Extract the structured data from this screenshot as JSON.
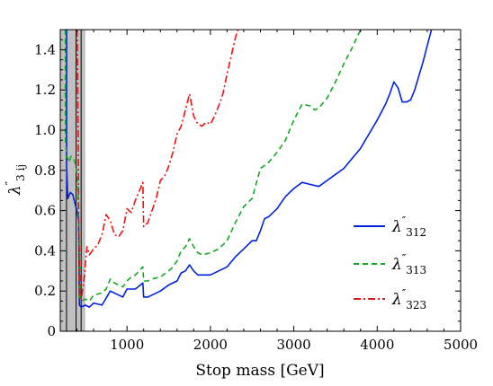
{
  "chart_data": {
    "type": "line",
    "xlabel": "Stop mass [GeV]",
    "ylabel": {
      "main": "λ",
      "prime": "″",
      "sub": "3 ij"
    },
    "xlim": [
      200,
      5000
    ],
    "ylim": [
      0,
      1.5
    ],
    "x_ticks": [
      1000,
      2000,
      3000,
      4000,
      5000
    ],
    "y_ticks": [
      0,
      0.2,
      0.4,
      0.6,
      0.8,
      1.0,
      1.2,
      1.4
    ],
    "x_tick_labels": [
      "1000",
      "2000",
      "3000",
      "4000",
      "5000"
    ],
    "y_tick_labels": [
      "0",
      "0.2",
      "0.4",
      "0.6",
      "0.8",
      "1.0",
      "1.2",
      "1.4"
    ],
    "legend_position": "right",
    "excluded_band": {
      "x": [
        200,
        500
      ],
      "color": "#c0c0c0"
    },
    "vertical_lines": [
      {
        "x": 275,
        "color": "#000000",
        "style": "solid"
      },
      {
        "x": 390,
        "color": "#000000",
        "style": "solid"
      },
      {
        "x": 450,
        "color": "#000000",
        "style": "solid"
      }
    ],
    "series": [
      {
        "name_main": "λ",
        "name_prime": "″",
        "name_sub": "312",
        "color": "#0022dd",
        "dash": "solid",
        "points": [
          [
            275,
            1.5
          ],
          [
            275,
            0.82
          ],
          [
            290,
            0.66
          ],
          [
            320,
            0.69
          ],
          [
            350,
            0.68
          ],
          [
            380,
            0.63
          ],
          [
            400,
            0.6
          ],
          [
            420,
            0.55
          ],
          [
            430,
            0.13
          ],
          [
            450,
            0.12
          ],
          [
            500,
            0.13
          ],
          [
            550,
            0.12
          ],
          [
            600,
            0.14
          ],
          [
            700,
            0.13
          ],
          [
            800,
            0.2
          ],
          [
            900,
            0.18
          ],
          [
            950,
            0.17
          ],
          [
            1000,
            0.21
          ],
          [
            1100,
            0.21
          ],
          [
            1190,
            0.24
          ],
          [
            1200,
            0.17
          ],
          [
            1250,
            0.17
          ],
          [
            1300,
            0.18
          ],
          [
            1400,
            0.2
          ],
          [
            1500,
            0.23
          ],
          [
            1600,
            0.25
          ],
          [
            1650,
            0.29
          ],
          [
            1700,
            0.3
          ],
          [
            1750,
            0.33
          ],
          [
            1800,
            0.3
          ],
          [
            1850,
            0.28
          ],
          [
            1900,
            0.28
          ],
          [
            2000,
            0.28
          ],
          [
            2100,
            0.3
          ],
          [
            2200,
            0.32
          ],
          [
            2300,
            0.37
          ],
          [
            2400,
            0.41
          ],
          [
            2500,
            0.45
          ],
          [
            2550,
            0.45
          ],
          [
            2600,
            0.5
          ],
          [
            2650,
            0.56
          ],
          [
            2700,
            0.57
          ],
          [
            2800,
            0.61
          ],
          [
            2900,
            0.67
          ],
          [
            3000,
            0.71
          ],
          [
            3100,
            0.74
          ],
          [
            3200,
            0.73
          ],
          [
            3300,
            0.72
          ],
          [
            3400,
            0.75
          ],
          [
            3500,
            0.78
          ],
          [
            3600,
            0.81
          ],
          [
            3700,
            0.86
          ],
          [
            3800,
            0.91
          ],
          [
            3900,
            0.98
          ],
          [
            4000,
            1.05
          ],
          [
            4100,
            1.13
          ],
          [
            4150,
            1.18
          ],
          [
            4200,
            1.24
          ],
          [
            4250,
            1.21
          ],
          [
            4300,
            1.14
          ],
          [
            4350,
            1.14
          ],
          [
            4400,
            1.15
          ],
          [
            4450,
            1.2
          ],
          [
            4500,
            1.27
          ],
          [
            4550,
            1.34
          ],
          [
            4600,
            1.42
          ],
          [
            4650,
            1.5
          ]
        ]
      },
      {
        "name_main": "λ",
        "name_prime": "″",
        "name_sub": "313",
        "color": "#11aa22",
        "dash": "6,4",
        "points": [
          [
            260,
            1.5
          ],
          [
            262,
            0.95
          ],
          [
            275,
            0.88
          ],
          [
            300,
            0.84
          ],
          [
            330,
            0.87
          ],
          [
            360,
            0.86
          ],
          [
            390,
            0.82
          ],
          [
            410,
            0.72
          ],
          [
            425,
            0.45
          ],
          [
            435,
            0.17
          ],
          [
            450,
            0.15
          ],
          [
            500,
            0.16
          ],
          [
            550,
            0.15
          ],
          [
            600,
            0.18
          ],
          [
            700,
            0.19
          ],
          [
            750,
            0.21
          ],
          [
            800,
            0.26
          ],
          [
            850,
            0.24
          ],
          [
            900,
            0.23
          ],
          [
            950,
            0.22
          ],
          [
            1000,
            0.25
          ],
          [
            1050,
            0.27
          ],
          [
            1100,
            0.28
          ],
          [
            1190,
            0.32
          ],
          [
            1200,
            0.25
          ],
          [
            1250,
            0.25
          ],
          [
            1300,
            0.26
          ],
          [
            1400,
            0.27
          ],
          [
            1500,
            0.3
          ],
          [
            1550,
            0.32
          ],
          [
            1600,
            0.35
          ],
          [
            1650,
            0.4
          ],
          [
            1700,
            0.42
          ],
          [
            1750,
            0.46
          ],
          [
            1800,
            0.42
          ],
          [
            1850,
            0.39
          ],
          [
            1900,
            0.38
          ],
          [
            2000,
            0.39
          ],
          [
            2100,
            0.41
          ],
          [
            2200,
            0.45
          ],
          [
            2300,
            0.54
          ],
          [
            2400,
            0.62
          ],
          [
            2500,
            0.66
          ],
          [
            2600,
            0.81
          ],
          [
            2700,
            0.84
          ],
          [
            2800,
            0.89
          ],
          [
            2900,
            0.95
          ],
          [
            3000,
            1.05
          ],
          [
            3100,
            1.13
          ],
          [
            3200,
            1.12
          ],
          [
            3250,
            1.1
          ],
          [
            3300,
            1.11
          ],
          [
            3400,
            1.16
          ],
          [
            3500,
            1.24
          ],
          [
            3600,
            1.33
          ],
          [
            3700,
            1.41
          ],
          [
            3800,
            1.5
          ]
        ]
      },
      {
        "name_main": "λ",
        "name_prime": "″",
        "name_sub": "323",
        "color": "#ee1111",
        "dash": "8,3,2,3",
        "points": [
          [
            400,
            1.5
          ],
          [
            405,
            1.42
          ],
          [
            410,
            1.15
          ],
          [
            415,
            0.95
          ],
          [
            420,
            0.6
          ],
          [
            425,
            0.45
          ],
          [
            430,
            0.3
          ],
          [
            440,
            0.18
          ],
          [
            450,
            0.16
          ],
          [
            480,
            0.24
          ],
          [
            520,
            0.42
          ],
          [
            550,
            0.38
          ],
          [
            600,
            0.41
          ],
          [
            650,
            0.43
          ],
          [
            700,
            0.48
          ],
          [
            750,
            0.58
          ],
          [
            800,
            0.55
          ],
          [
            850,
            0.48
          ],
          [
            900,
            0.47
          ],
          [
            950,
            0.5
          ],
          [
            1000,
            0.61
          ],
          [
            1050,
            0.59
          ],
          [
            1100,
            0.65
          ],
          [
            1150,
            0.7
          ],
          [
            1190,
            0.74
          ],
          [
            1200,
            0.52
          ],
          [
            1250,
            0.54
          ],
          [
            1300,
            0.6
          ],
          [
            1350,
            0.66
          ],
          [
            1400,
            0.75
          ],
          [
            1450,
            0.77
          ],
          [
            1500,
            0.82
          ],
          [
            1550,
            0.89
          ],
          [
            1600,
            0.98
          ],
          [
            1650,
            1.02
          ],
          [
            1700,
            1.1
          ],
          [
            1750,
            1.18
          ],
          [
            1800,
            1.07
          ],
          [
            1850,
            1.03
          ],
          [
            1900,
            1.02
          ],
          [
            1950,
            1.04
          ],
          [
            2000,
            1.03
          ],
          [
            2050,
            1.07
          ],
          [
            2100,
            1.12
          ],
          [
            2150,
            1.18
          ],
          [
            2200,
            1.28
          ],
          [
            2250,
            1.37
          ],
          [
            2300,
            1.46
          ],
          [
            2330,
            1.5
          ]
        ]
      }
    ]
  }
}
